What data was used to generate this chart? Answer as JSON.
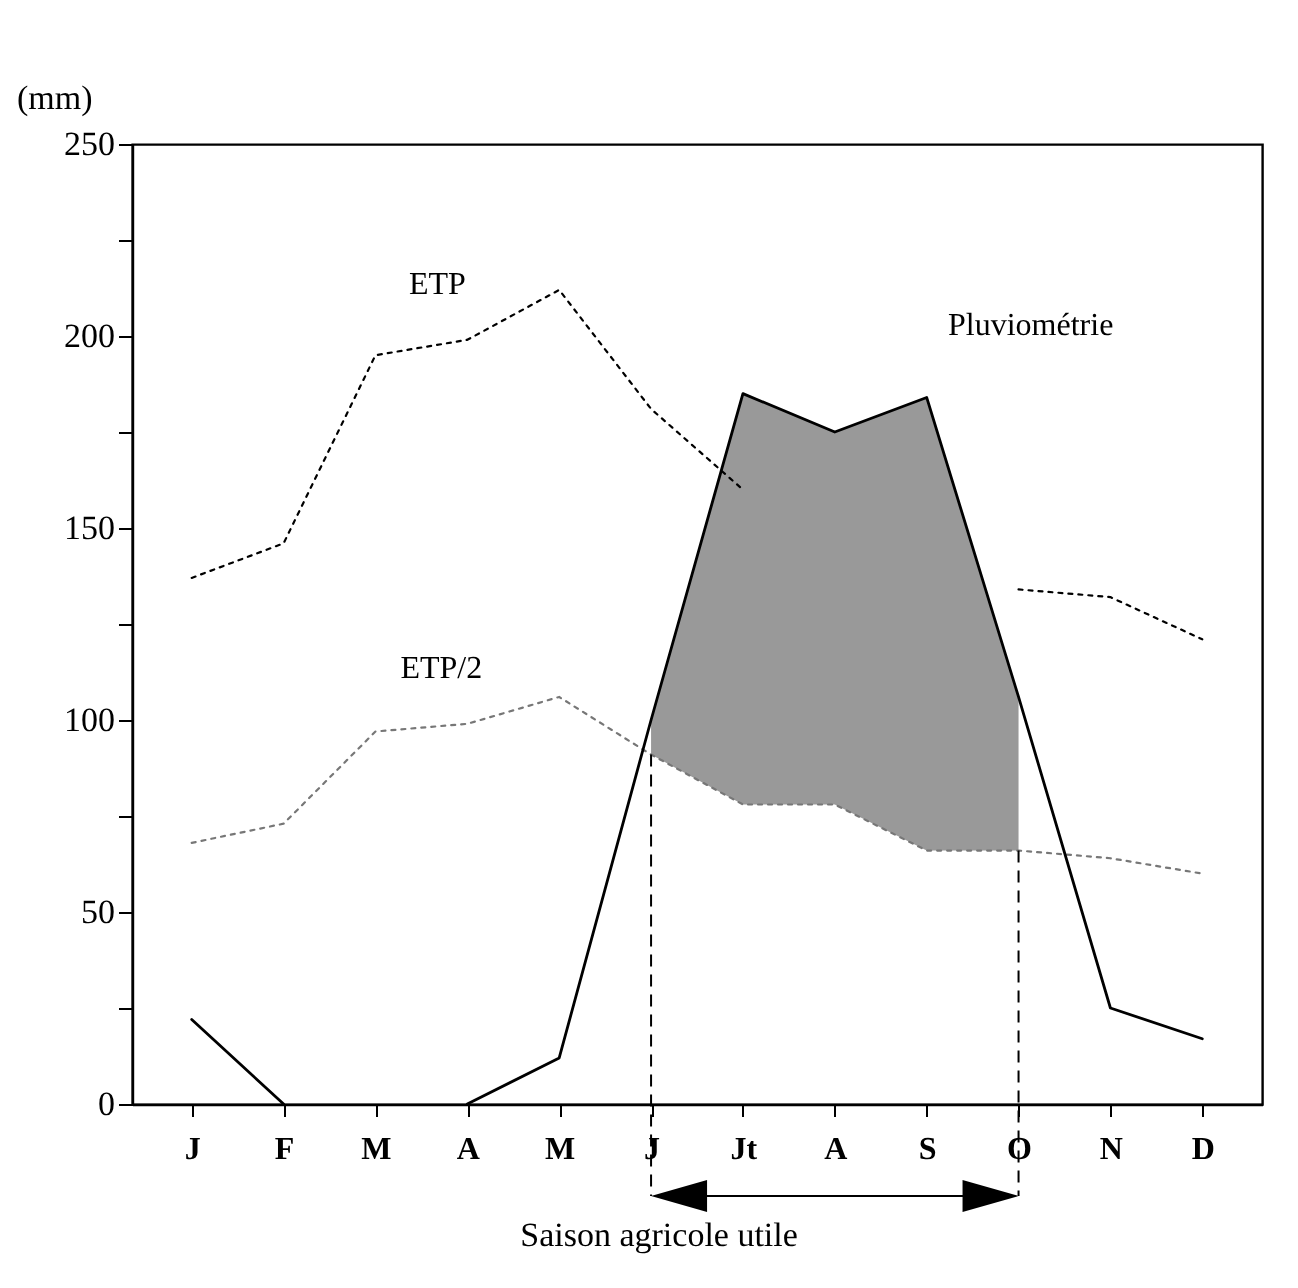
{
  "chart_data": {
    "type": "line",
    "ylabel": "(mm)",
    "categories": [
      "J",
      "F",
      "M",
      "A",
      "M",
      "J",
      "Jt",
      "A",
      "S",
      "O",
      "N",
      "D"
    ],
    "ylim": [
      0,
      250
    ],
    "yticks": [
      0,
      {
        "value": 25,
        "label": null
      },
      50,
      {
        "value": 75,
        "label": null
      },
      100,
      {
        "value": 125,
        "label": null
      },
      150,
      {
        "value": 175,
        "label": null
      },
      200,
      {
        "value": 225,
        "label": null
      },
      250
    ],
    "series": [
      {
        "name": "ETP",
        "color": "#000000",
        "line_style": "dotted",
        "values": [
          137,
          146,
          195,
          199,
          212,
          181,
          160,
          null,
          null,
          134,
          132,
          121
        ]
      },
      {
        "name": "ETP/2",
        "color": "#777777",
        "line_style": "dotted",
        "values": [
          68,
          73,
          97,
          99,
          106,
          91,
          78,
          78,
          66,
          66,
          64,
          60
        ]
      },
      {
        "name": "Pluviométrie",
        "color": "#000000",
        "line_style": "solid",
        "values": [
          22,
          0,
          null,
          0,
          12,
          100,
          185,
          175,
          184,
          106,
          25,
          17
        ],
        "lower": [
          null,
          null,
          null,
          null,
          null,
          91,
          78,
          78,
          66,
          66,
          null,
          null
        ],
        "upper": [
          null,
          null,
          null,
          null,
          null,
          100,
          185,
          175,
          184,
          106,
          null,
          null
        ]
      }
    ],
    "annotations": [
      {
        "text": "Saison agricole utile",
        "y": 91
      }
    ],
    "grid": false,
    "legend": false,
    "marker": "none"
  }
}
